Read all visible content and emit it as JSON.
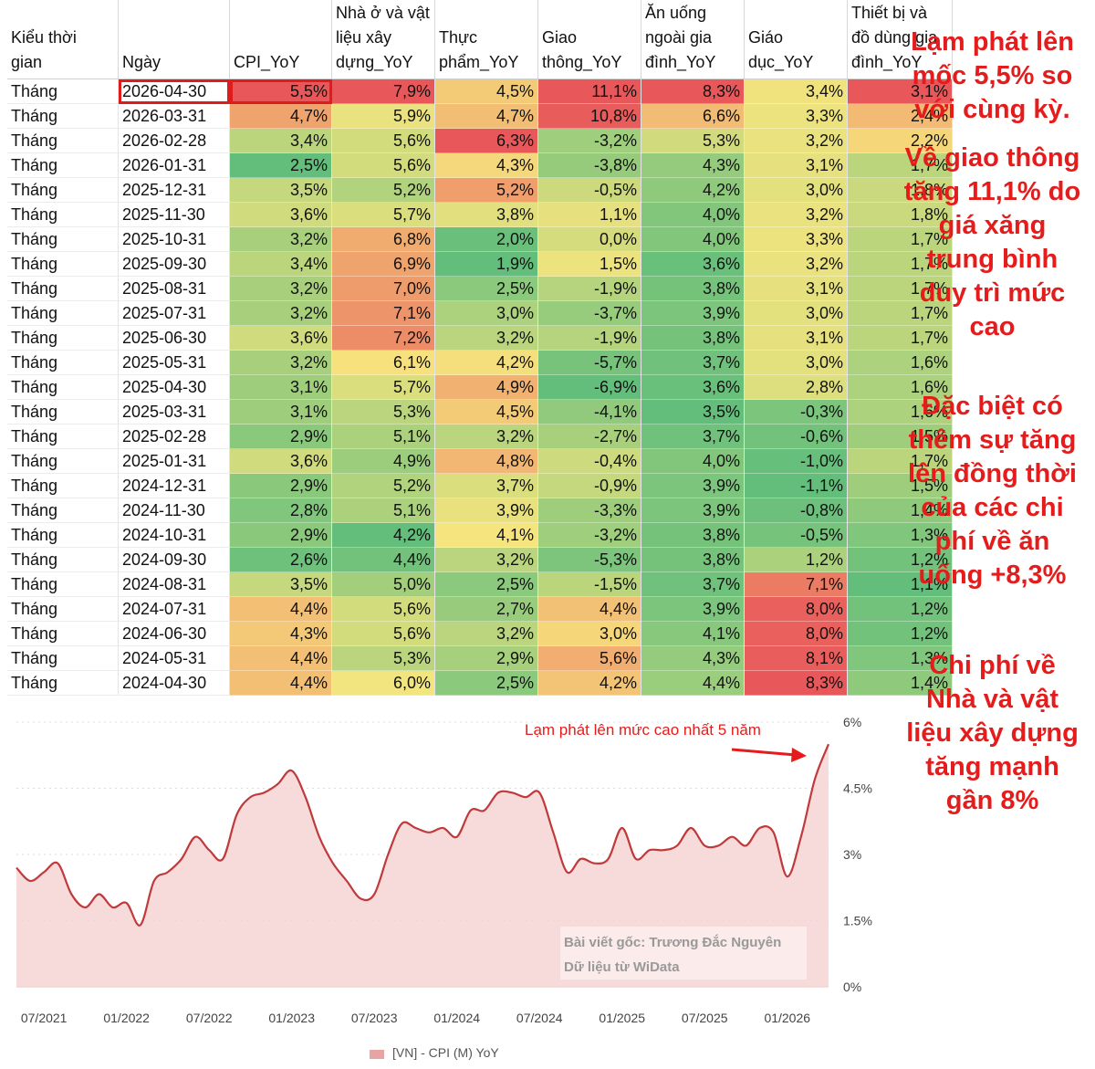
{
  "table": {
    "headers": [
      "Kiểu thời gian",
      "Ngày",
      "CPI_YoY",
      "Nhà ở và vật liệu xây dựng_YoY",
      "Thực phẩm_YoY",
      "Giao thông_YoY",
      "Ăn uống ngoài gia đình_YoY",
      "Giáo dục_YoY",
      "Thiết bị và đồ dùng gia đình_YoY"
    ],
    "header_lines": [
      [
        "Kiểu thời",
        "gian"
      ],
      [
        "Ngày"
      ],
      [
        "CPI_YoY"
      ],
      [
        "Nhà ở và vật",
        "liệu xây",
        "dựng_YoY"
      ],
      [
        "Thực",
        "phẩm_YoY"
      ],
      [
        "Giao",
        "thông_YoY"
      ],
      [
        "Ăn uống",
        "ngoài gia",
        "đình_YoY"
      ],
      [
        "Giáo",
        "dục_YoY"
      ],
      [
        "Thiết bị và",
        "đồ dùng gia",
        "đình_YoY"
      ]
    ],
    "rows": [
      [
        "Tháng",
        "2026-04-30",
        "5,5%",
        "7,9%",
        "4,5%",
        "11,1%",
        "8,3%",
        "3,4%",
        "3,1%"
      ],
      [
        "Tháng",
        "2026-03-31",
        "4,7%",
        "5,9%",
        "4,7%",
        "10,8%",
        "6,6%",
        "3,3%",
        "2,4%"
      ],
      [
        "Tháng",
        "2026-02-28",
        "3,4%",
        "5,6%",
        "6,3%",
        "-3,2%",
        "5,3%",
        "3,2%",
        "2,2%"
      ],
      [
        "Tháng",
        "2026-01-31",
        "2,5%",
        "5,6%",
        "4,3%",
        "-3,8%",
        "4,3%",
        "3,1%",
        "1,7%"
      ],
      [
        "Tháng",
        "2025-12-31",
        "3,5%",
        "5,2%",
        "5,2%",
        "-0,5%",
        "4,2%",
        "3,0%",
        "1,8%"
      ],
      [
        "Tháng",
        "2025-11-30",
        "3,6%",
        "5,7%",
        "3,8%",
        "1,1%",
        "4,0%",
        "3,2%",
        "1,8%"
      ],
      [
        "Tháng",
        "2025-10-31",
        "3,2%",
        "6,8%",
        "2,0%",
        "0,0%",
        "4,0%",
        "3,3%",
        "1,7%"
      ],
      [
        "Tháng",
        "2025-09-30",
        "3,4%",
        "6,9%",
        "1,9%",
        "1,5%",
        "3,6%",
        "3,2%",
        "1,7%"
      ],
      [
        "Tháng",
        "2025-08-31",
        "3,2%",
        "7,0%",
        "2,5%",
        "-1,9%",
        "3,8%",
        "3,1%",
        "1,7%"
      ],
      [
        "Tháng",
        "2025-07-31",
        "3,2%",
        "7,1%",
        "3,0%",
        "-3,7%",
        "3,9%",
        "3,0%",
        "1,7%"
      ],
      [
        "Tháng",
        "2025-06-30",
        "3,6%",
        "7,2%",
        "3,2%",
        "-1,9%",
        "3,8%",
        "3,1%",
        "1,7%"
      ],
      [
        "Tháng",
        "2025-05-31",
        "3,2%",
        "6,1%",
        "4,2%",
        "-5,7%",
        "3,7%",
        "3,0%",
        "1,6%"
      ],
      [
        "Tháng",
        "2025-04-30",
        "3,1%",
        "5,7%",
        "4,9%",
        "-6,9%",
        "3,6%",
        "2,8%",
        "1,6%"
      ],
      [
        "Tháng",
        "2025-03-31",
        "3,1%",
        "5,3%",
        "4,5%",
        "-4,1%",
        "3,5%",
        "-0,3%",
        "1,6%"
      ],
      [
        "Tháng",
        "2025-02-28",
        "2,9%",
        "5,1%",
        "3,2%",
        "-2,7%",
        "3,7%",
        "-0,6%",
        "1,5%"
      ],
      [
        "Tháng",
        "2025-01-31",
        "3,6%",
        "4,9%",
        "4,8%",
        "-0,4%",
        "4,0%",
        "-1,0%",
        "1,7%"
      ],
      [
        "Tháng",
        "2024-12-31",
        "2,9%",
        "5,2%",
        "3,7%",
        "-0,9%",
        "3,9%",
        "-1,1%",
        "1,5%"
      ],
      [
        "Tháng",
        "2024-11-30",
        "2,8%",
        "5,1%",
        "3,9%",
        "-3,3%",
        "3,9%",
        "-0,8%",
        "1,4%"
      ],
      [
        "Tháng",
        "2024-10-31",
        "2,9%",
        "4,2%",
        "4,1%",
        "-3,2%",
        "3,8%",
        "-0,5%",
        "1,3%"
      ],
      [
        "Tháng",
        "2024-09-30",
        "2,6%",
        "4,4%",
        "3,2%",
        "-5,3%",
        "3,8%",
        "1,2%",
        "1,2%"
      ],
      [
        "Tháng",
        "2024-08-31",
        "3,5%",
        "5,0%",
        "2,5%",
        "-1,5%",
        "3,7%",
        "7,1%",
        "1,1%"
      ],
      [
        "Tháng",
        "2024-07-31",
        "4,4%",
        "5,6%",
        "2,7%",
        "4,4%",
        "3,9%",
        "8,0%",
        "1,2%"
      ],
      [
        "Tháng",
        "2024-06-30",
        "4,3%",
        "5,6%",
        "3,2%",
        "3,0%",
        "4,1%",
        "8,0%",
        "1,2%"
      ],
      [
        "Tháng",
        "2024-05-31",
        "4,4%",
        "5,3%",
        "2,9%",
        "5,6%",
        "4,3%",
        "8,1%",
        "1,3%"
      ],
      [
        "Tháng",
        "2024-04-30",
        "4,4%",
        "6,0%",
        "2,5%",
        "4,2%",
        "4,4%",
        "8,3%",
        "1,4%"
      ]
    ]
  },
  "side_notes": [
    "Lạm phát lên mốc 5,5% so với cùng kỳ.",
    "Về giao thông tăng 11,1% do giá xăng trung bình duy trì mức cao",
    "Đặc biệt có thêm sự tăng lên đồng thời của các chi phí về ăn uống +8,3%",
    "Chi phí về Nhà và vật liệu xây dựng tăng mạnh gần 8%"
  ],
  "colors": {
    "red": "#e8575a",
    "yellow": "#f6e57e",
    "green": "#63be7b",
    "line": "#c0393b",
    "area": "#f6d3d3",
    "accent": "#e51c1c"
  },
  "chart_data": {
    "type": "area",
    "annotation": "Lạm phát lên mức cao nhất 5 năm",
    "watermark_line1": "Bài viết gốc: Trương Đắc Nguyên",
    "watermark_line2": "Dữ liệu từ WiData",
    "x_ticks": [
      "07/2021",
      "01/2022",
      "07/2022",
      "01/2023",
      "07/2023",
      "01/2024",
      "07/2024",
      "01/2025",
      "07/2025",
      "01/2026"
    ],
    "y_ticks": [
      "0%",
      "1.5%",
      "3%",
      "4.5%",
      "6%"
    ],
    "ylim": [
      0,
      6
    ],
    "series": [
      {
        "name": "[VN] - CPI (M) YoY",
        "x": [
          "2021-05",
          "2021-06",
          "2021-07",
          "2021-08",
          "2021-09",
          "2021-10",
          "2021-11",
          "2021-12",
          "2022-01",
          "2022-02",
          "2022-03",
          "2022-04",
          "2022-05",
          "2022-06",
          "2022-07",
          "2022-08",
          "2022-09",
          "2022-10",
          "2022-11",
          "2022-12",
          "2023-01",
          "2023-02",
          "2023-03",
          "2023-04",
          "2023-05",
          "2023-06",
          "2023-07",
          "2023-08",
          "2023-09",
          "2023-10",
          "2023-11",
          "2023-12",
          "2024-01",
          "2024-02",
          "2024-03",
          "2024-04",
          "2024-05",
          "2024-06",
          "2024-07",
          "2024-08",
          "2024-09",
          "2024-10",
          "2024-11",
          "2024-12",
          "2025-01",
          "2025-02",
          "2025-03",
          "2025-04",
          "2025-05",
          "2025-06",
          "2025-07",
          "2025-08",
          "2025-09",
          "2025-10",
          "2025-11",
          "2025-12",
          "2026-01",
          "2026-02",
          "2026-03",
          "2026-04"
        ],
        "values": [
          2.7,
          2.4,
          2.6,
          2.8,
          2.1,
          1.8,
          2.1,
          1.8,
          1.9,
          1.4,
          2.4,
          2.6,
          2.9,
          3.4,
          3.1,
          2.9,
          3.9,
          4.3,
          4.4,
          4.6,
          4.9,
          4.3,
          3.4,
          2.8,
          2.4,
          2.0,
          2.1,
          3.0,
          3.7,
          3.6,
          3.5,
          3.6,
          3.4,
          4.0,
          4.0,
          4.4,
          4.4,
          4.3,
          4.4,
          3.5,
          2.6,
          2.9,
          2.8,
          2.9,
          3.6,
          2.9,
          3.1,
          3.1,
          3.2,
          3.6,
          3.2,
          3.2,
          3.4,
          3.2,
          3.6,
          3.5,
          2.5,
          3.4,
          4.7,
          5.5
        ]
      }
    ]
  }
}
